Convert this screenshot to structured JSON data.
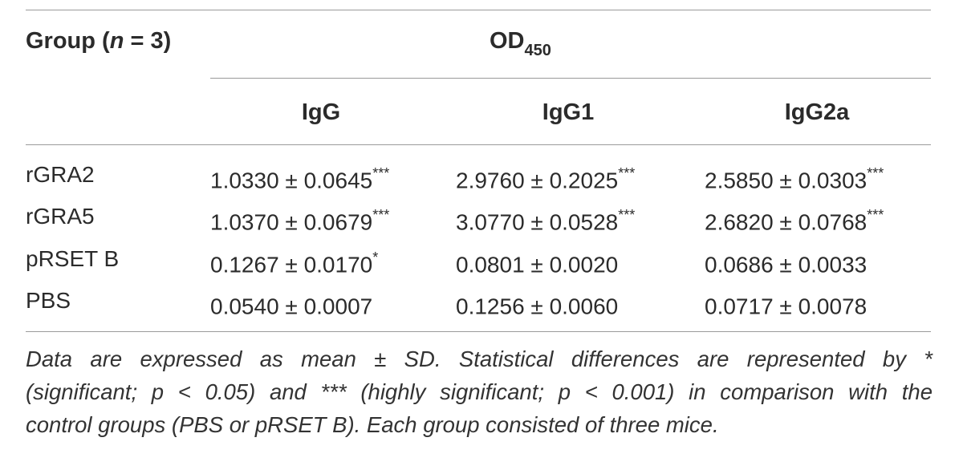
{
  "table": {
    "group_header": {
      "prefix": "Group (",
      "var": "n",
      "suffix": " = 3)"
    },
    "od_header": {
      "main": "OD",
      "sub": "450"
    },
    "columns": [
      "IgG",
      "IgG1",
      "IgG2a"
    ],
    "rows": [
      {
        "label": "rGRA2",
        "cells": [
          {
            "value": "1.0330 ± 0.0645",
            "sig": "***"
          },
          {
            "value": "2.9760 ± 0.2025",
            "sig": "***"
          },
          {
            "value": "2.5850 ± 0.0303",
            "sig": "***"
          }
        ]
      },
      {
        "label": "rGRA5",
        "cells": [
          {
            "value": "1.0370 ± 0.0679",
            "sig": "***"
          },
          {
            "value": "3.0770 ± 0.0528",
            "sig": "***"
          },
          {
            "value": "2.6820 ± 0.0768",
            "sig": "***"
          }
        ]
      },
      {
        "label": "pRSET B",
        "cells": [
          {
            "value": "0.1267 ± 0.0170",
            "sig": "*"
          },
          {
            "value": "0.0801 ± 0.0020",
            "sig": ""
          },
          {
            "value": "0.0686 ± 0.0033",
            "sig": ""
          }
        ]
      },
      {
        "label": "PBS",
        "cells": [
          {
            "value": "0.0540 ± 0.0007",
            "sig": ""
          },
          {
            "value": "0.1256 ± 0.0060",
            "sig": ""
          },
          {
            "value": "0.0717 ± 0.0078",
            "sig": ""
          }
        ]
      }
    ]
  },
  "footnote": {
    "line1": "Data are expressed as mean ± SD. Statistical differences are represented by *",
    "line2": "(significant; p < 0.05) and *** (highly significant; p < 0.001) in comparison with the",
    "line3": "control groups (PBS or pRSET B). Each group consisted of three mice."
  }
}
